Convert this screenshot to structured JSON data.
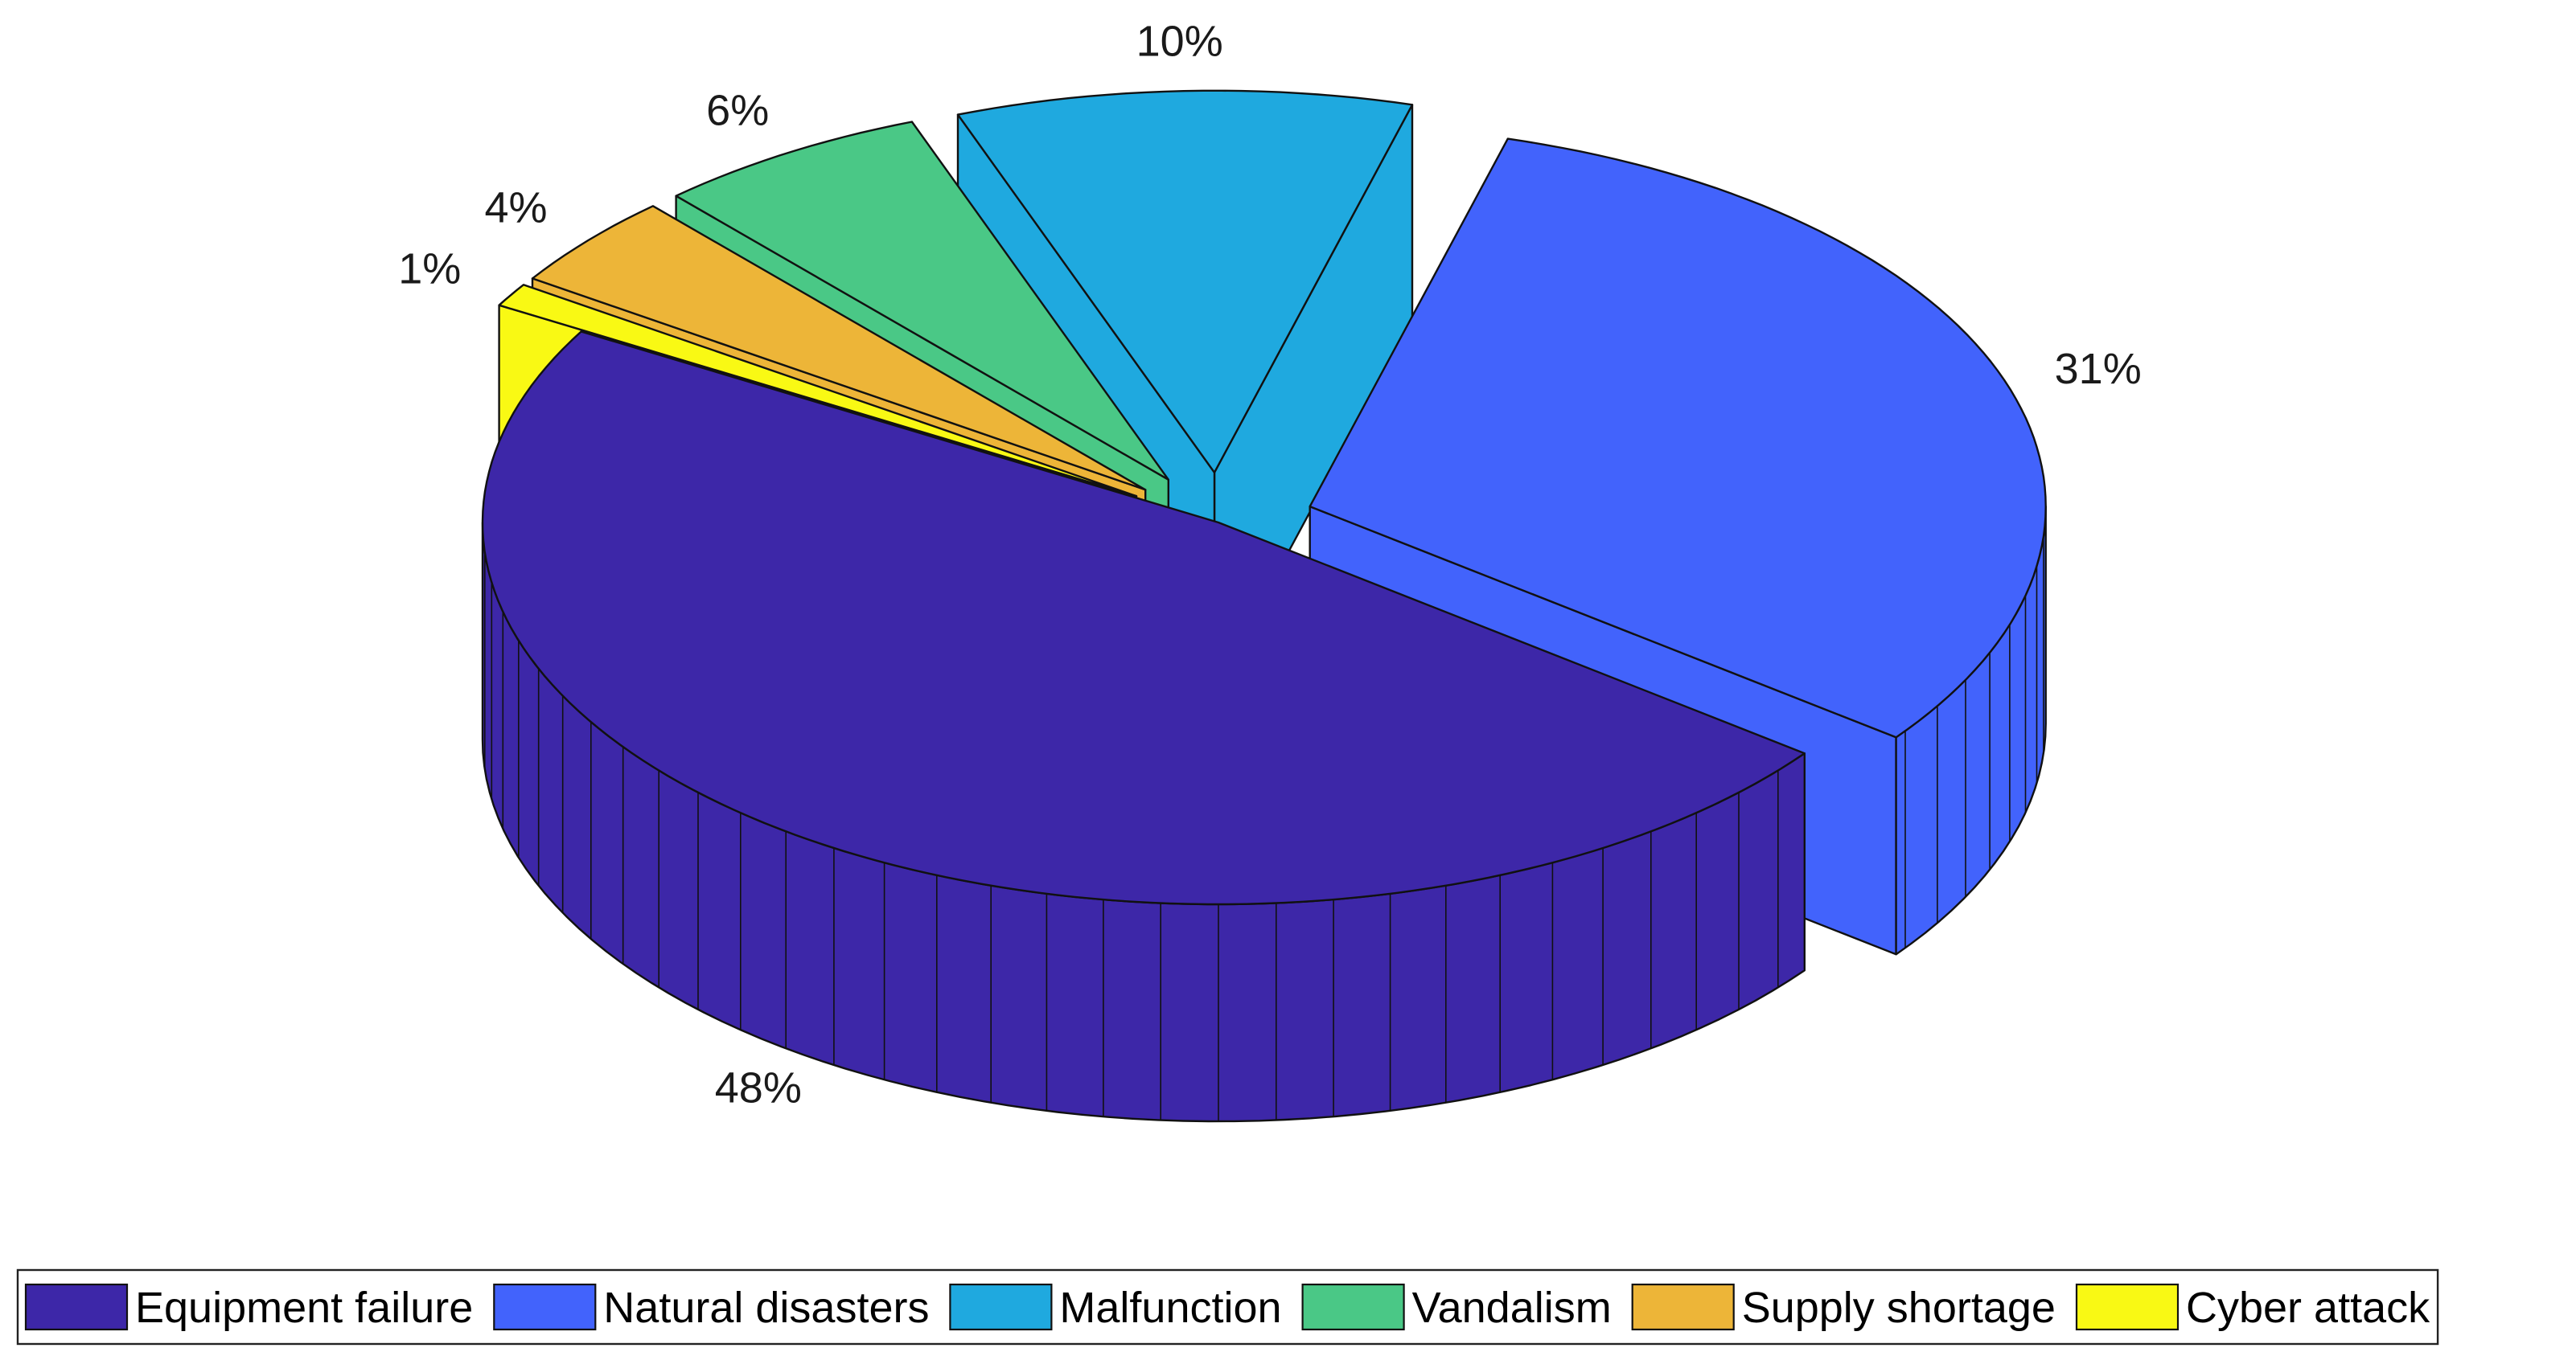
{
  "chart_data": {
    "type": "pie",
    "style": "3d-exploded",
    "categories": [
      "Equipment failure",
      "Natural disasters",
      "Malfunction",
      "Vandalism",
      "Supply shortage",
      "Cyber attack"
    ],
    "values": [
      48,
      31,
      10,
      6,
      4,
      1
    ],
    "labels": [
      "48%",
      "31%",
      "10%",
      "6%",
      "4%",
      "1%"
    ],
    "colors": [
      "#3d27a8",
      "#4263fc",
      "#1fa9df",
      "#4ac886",
      "#edb538",
      "#f9f914"
    ],
    "exploded": [
      false,
      true,
      true,
      true,
      true,
      true
    ],
    "legend": {
      "placement": "bottom",
      "orientation": "horizontal",
      "entries": [
        "Equipment failure",
        "Natural disasters",
        "Malfunction",
        "Vandalism",
        "Supply shortage",
        "Cyber attack"
      ]
    },
    "title": "",
    "xlabel": "",
    "ylabel": ""
  }
}
